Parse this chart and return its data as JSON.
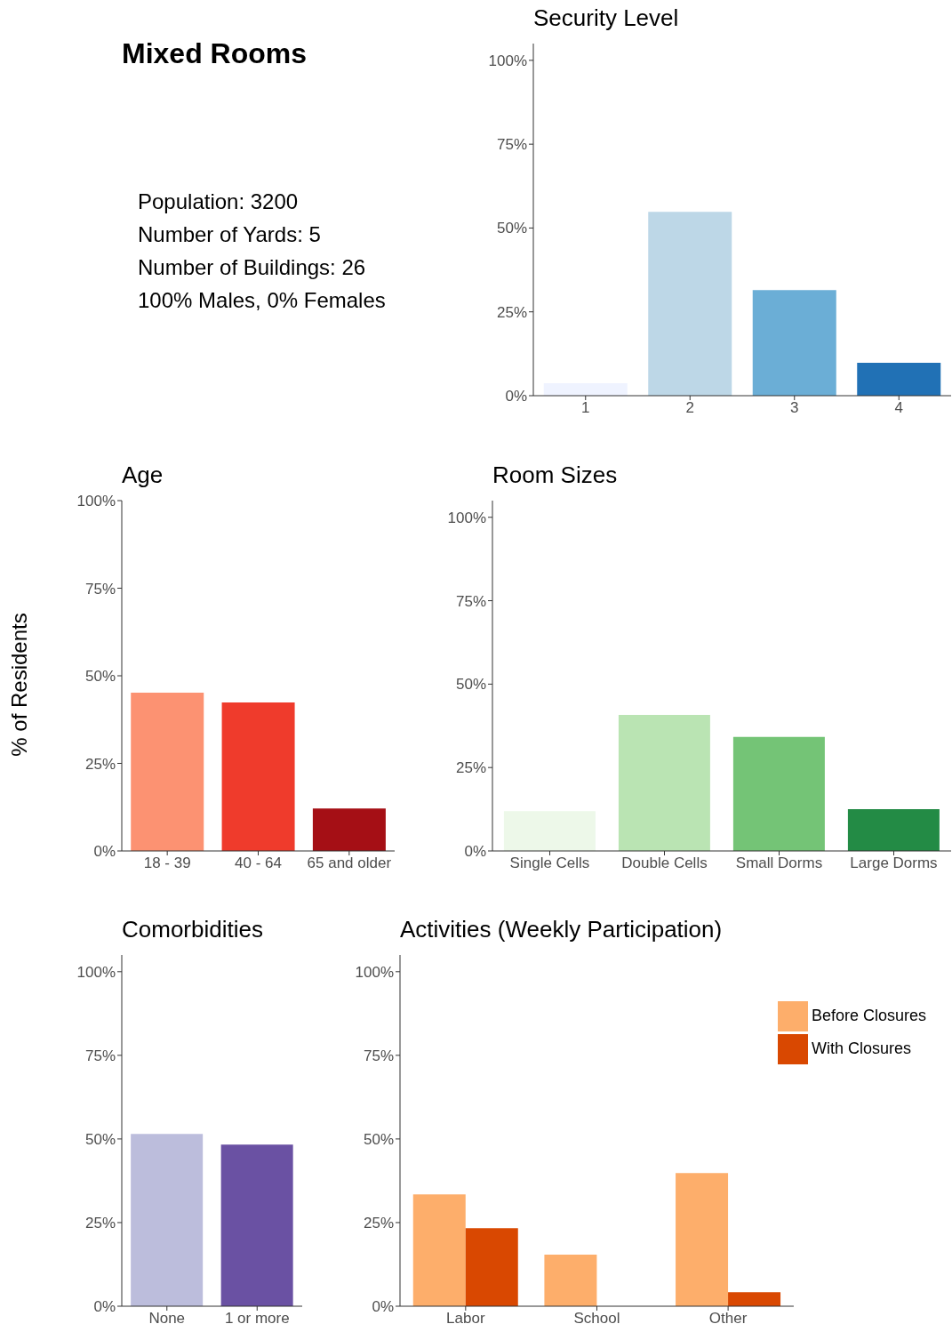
{
  "chart_data": [
    {
      "type": "other",
      "title": "Mixed Rooms",
      "annotations": [
        "Population: 3200",
        "Number of Yards: 5",
        "Number of Buildings: 26",
        "100% Males, 0% Females"
      ]
    },
    {
      "type": "bar",
      "title": "Security Level",
      "categories": [
        "1",
        "2",
        "3",
        "4"
      ],
      "values": [
        3.7,
        54.8,
        31.5,
        9.8
      ],
      "colors": [
        "#eff3ff",
        "#bdd7e7",
        "#6baed6",
        "#2171b5"
      ],
      "ylim": [
        0,
        105
      ],
      "yticks": [
        {
          "value": 0,
          "label": "0%"
        },
        {
          "value": 25,
          "label": "25%"
        },
        {
          "value": 50,
          "label": "50%"
        },
        {
          "value": 75,
          "label": "75%"
        },
        {
          "value": 100,
          "label": "100%"
        }
      ]
    },
    {
      "type": "bar",
      "title": "Age",
      "ylabel": "% of Residents",
      "categories": [
        "18 - 39",
        "40 - 64",
        "65 and older"
      ],
      "values": [
        45.2,
        42.4,
        12.1
      ],
      "colors": [
        "#fc9272",
        "#ef3b2c",
        "#a50f15"
      ],
      "ylim": [
        0,
        100
      ],
      "yticks": [
        {
          "value": 0,
          "label": "0%"
        },
        {
          "value": 25,
          "label": "25%"
        },
        {
          "value": 50,
          "label": "50%"
        },
        {
          "value": 75,
          "label": "75%"
        },
        {
          "value": 100,
          "label": "100%"
        }
      ]
    },
    {
      "type": "bar",
      "title": "Room Sizes",
      "categories": [
        "Single Cells",
        "Double Cells",
        "Small Dorms",
        "Large Dorms"
      ],
      "values": [
        11.9,
        40.8,
        34.2,
        12.5
      ],
      "colors": [
        "#edf8e9",
        "#bae4b3",
        "#74c476",
        "#238b45"
      ],
      "ylim": [
        0,
        105
      ],
      "yticks": [
        {
          "value": 0,
          "label": "0%"
        },
        {
          "value": 25,
          "label": "25%"
        },
        {
          "value": 50,
          "label": "50%"
        },
        {
          "value": 75,
          "label": "75%"
        },
        {
          "value": 100,
          "label": "100%"
        }
      ]
    },
    {
      "type": "bar",
      "title": "Comorbidities",
      "categories": [
        "None",
        "1 or more"
      ],
      "values": [
        51.5,
        48.3
      ],
      "colors": [
        "#bcbddc",
        "#6a51a3"
      ],
      "ylim": [
        0,
        105
      ],
      "yticks": [
        {
          "value": 0,
          "label": "0%"
        },
        {
          "value": 25,
          "label": "25%"
        },
        {
          "value": 50,
          "label": "50%"
        },
        {
          "value": 75,
          "label": "75%"
        },
        {
          "value": 100,
          "label": "100%"
        }
      ]
    },
    {
      "type": "bar",
      "title": "Activities (Weekly Participation)",
      "categories": [
        "Labor",
        "School",
        "Other"
      ],
      "series": [
        {
          "name": "Before Closures",
          "color": "#fdae6b",
          "values": [
            33.4,
            15.4,
            39.8
          ]
        },
        {
          "name": "With Closures",
          "color": "#d94801",
          "values": [
            23.3,
            0,
            4.2
          ]
        }
      ],
      "legend": "top right",
      "ylim": [
        0,
        105
      ],
      "yticks": [
        {
          "value": 0,
          "label": "0%"
        },
        {
          "value": 25,
          "label": "25%"
        },
        {
          "value": 50,
          "label": "50%"
        },
        {
          "value": 75,
          "label": "75%"
        },
        {
          "value": 100,
          "label": "100%"
        }
      ]
    }
  ]
}
